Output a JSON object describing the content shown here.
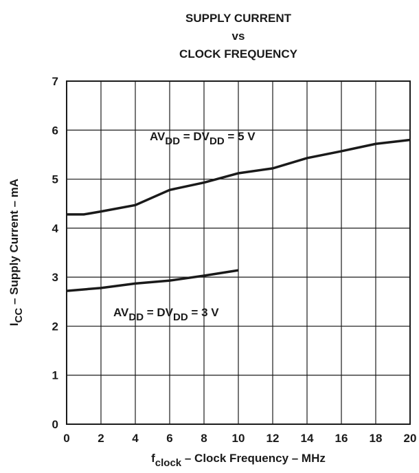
{
  "chart_data": {
    "type": "line",
    "title": [
      "SUPPLY CURRENT",
      "vs",
      "CLOCK FREQUENCY"
    ],
    "x_label": [
      "f",
      "clock",
      " – Clock Frequency – MHz"
    ],
    "y_label": [
      "I",
      "CC",
      " – Supply Current – mA"
    ],
    "xlim": [
      0,
      20
    ],
    "xticks": [
      0,
      2,
      4,
      6,
      8,
      10,
      12,
      14,
      16,
      18,
      20
    ],
    "ylim": [
      0,
      7
    ],
    "yticks": [
      0,
      1,
      2,
      3,
      4,
      5,
      6,
      7
    ],
    "grid": true,
    "series": [
      {
        "name": [
          "AV",
          "DD",
          " = DV",
          "DD",
          " = 5 V"
        ],
        "color": "#1a1a1a",
        "x": [
          0,
          1,
          2,
          4,
          6,
          8,
          10,
          12,
          14,
          16,
          18,
          20
        ],
        "values": [
          4.28,
          4.28,
          4.34,
          4.47,
          4.78,
          4.93,
          5.12,
          5.22,
          5.43,
          5.57,
          5.72,
          5.8
        ]
      },
      {
        "name": [
          "AV",
          "DD",
          " = DV",
          "DD",
          " = 3 V"
        ],
        "color": "#1a1a1a",
        "x": [
          0,
          2,
          4,
          6,
          8,
          10
        ],
        "values": [
          2.72,
          2.78,
          2.87,
          2.93,
          3.03,
          3.14
        ]
      }
    ]
  }
}
